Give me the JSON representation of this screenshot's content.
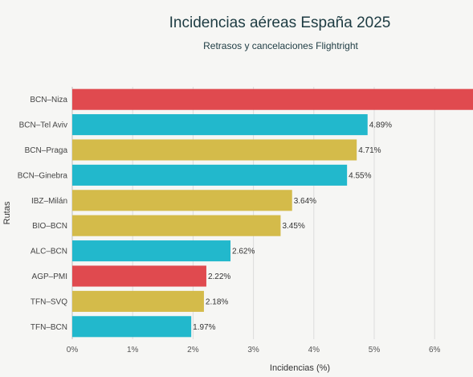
{
  "chart_data": {
    "type": "bar",
    "orientation": "horizontal",
    "title": "Incidencias aéreas España 2025",
    "subtitle": "Retrasos y cancelaciones Flightright",
    "xlabel": "Incidencias (%)",
    "ylabel": "Rutas",
    "xlim": [
      0,
      6.6
    ],
    "x_ticks": [
      "0%",
      "1%",
      "2%",
      "3%",
      "4%",
      "5%",
      "6%"
    ],
    "grid": true,
    "categories": [
      "BCN–Niza",
      "BCN–Tel Aviv",
      "BCN–Praga",
      "BCN–Ginebra",
      "IBZ–Milán",
      "BIO–BCN",
      "ALC–BCN",
      "AGP–PMI",
      "TFN–SVQ",
      "TFN–BCN"
    ],
    "values": [
      6.9,
      4.89,
      4.71,
      4.55,
      3.64,
      3.45,
      2.62,
      2.22,
      2.18,
      1.97
    ],
    "value_labels": [
      "",
      "4.89%",
      "4.71%",
      "4.55%",
      "3.64%",
      "3.45%",
      "2.62%",
      "2.22%",
      "2.18%",
      "1.97%"
    ],
    "bar_colors": [
      "#e04a4f",
      "#22b8cc",
      "#d4bb4a",
      "#22b8cc",
      "#d4bb4a",
      "#d4bb4a",
      "#22b8cc",
      "#e04a4f",
      "#d4bb4a",
      "#22b8cc"
    ]
  }
}
